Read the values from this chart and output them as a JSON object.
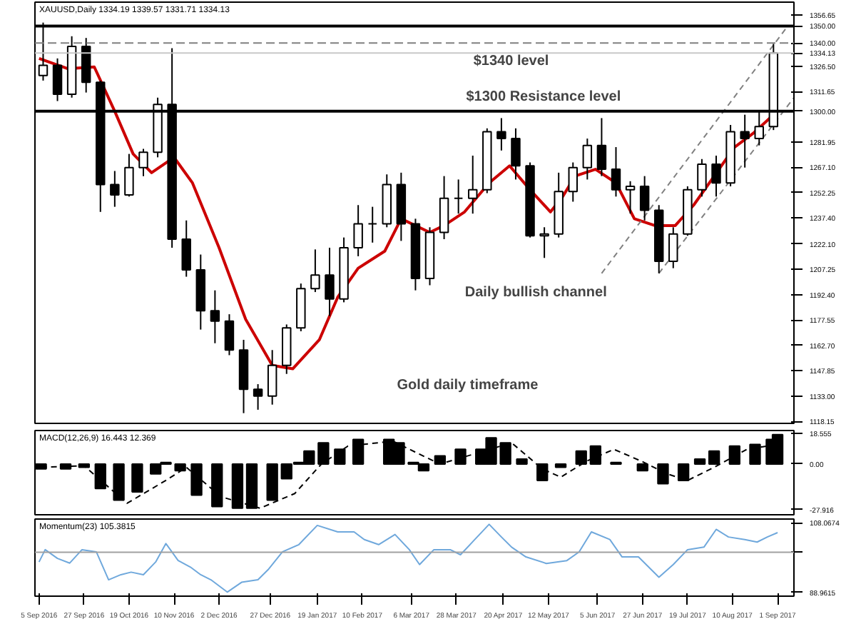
{
  "chart_data": [
    {
      "type": "candlestick",
      "title": "XAUUSD,Daily 1334.19 1339.57 1331.71 1334.13",
      "tick_labels": "y",
      "grid": false,
      "x": [
        "2016-09-07",
        "2016-09-14",
        "2016-09-21",
        "2016-09-28",
        "2016-10-05",
        "2016-10-12",
        "2016-10-19",
        "2016-10-26",
        "2016-11-02",
        "2016-11-09",
        "2016-11-16",
        "2016-11-23",
        "2016-11-30",
        "2016-12-07",
        "2016-12-14",
        "2016-12-21",
        "2016-12-28",
        "2017-01-04",
        "2017-01-11",
        "2017-01-18",
        "2017-01-25",
        "2017-02-01",
        "2017-02-08",
        "2017-02-15",
        "2017-02-22",
        "2017-03-01",
        "2017-03-08",
        "2017-03-15",
        "2017-03-22",
        "2017-03-29",
        "2017-04-05",
        "2017-04-12",
        "2017-04-19",
        "2017-04-26",
        "2017-05-03",
        "2017-05-10",
        "2017-05-17",
        "2017-05-24",
        "2017-05-31",
        "2017-06-07",
        "2017-06-14",
        "2017-06-21",
        "2017-06-28",
        "2017-07-05",
        "2017-07-12",
        "2017-07-19",
        "2017-07-26",
        "2017-08-02",
        "2017-08-09",
        "2017-08-16",
        "2017-08-23",
        "2017-08-30"
      ],
      "ohlc": [
        [
          1321,
          1352,
          1318,
          1327
        ],
        [
          1327,
          1331,
          1306,
          1310
        ],
        [
          1310,
          1344,
          1308,
          1338
        ],
        [
          1338,
          1343,
          1311,
          1317
        ],
        [
          1317,
          1318,
          1241,
          1257
        ],
        [
          1257,
          1265,
          1244,
          1251
        ],
        [
          1251,
          1275,
          1250,
          1267
        ],
        [
          1267,
          1278,
          1262,
          1276
        ],
        [
          1276,
          1308,
          1273,
          1304
        ],
        [
          1304,
          1337,
          1220,
          1225
        ],
        [
          1225,
          1236,
          1203,
          1207
        ],
        [
          1207,
          1216,
          1172,
          1183
        ],
        [
          1183,
          1195,
          1164,
          1177
        ],
        [
          1177,
          1181,
          1157,
          1160
        ],
        [
          1160,
          1166,
          1123,
          1137
        ],
        [
          1137,
          1140,
          1125,
          1133
        ],
        [
          1133,
          1160,
          1128,
          1151
        ],
        [
          1151,
          1175,
          1146,
          1173
        ],
        [
          1173,
          1199,
          1171,
          1196
        ],
        [
          1196,
          1219,
          1194,
          1204
        ],
        [
          1204,
          1220,
          1180,
          1190
        ],
        [
          1190,
          1226,
          1188,
          1220
        ],
        [
          1220,
          1245,
          1215,
          1234
        ],
        [
          1234,
          1244,
          1223,
          1234
        ],
        [
          1234,
          1263,
          1232,
          1257
        ],
        [
          1257,
          1264,
          1224,
          1234
        ],
        [
          1234,
          1237,
          1195,
          1202
        ],
        [
          1202,
          1232,
          1198,
          1229
        ],
        [
          1229,
          1262,
          1225,
          1249
        ],
        [
          1249,
          1260,
          1240,
          1249
        ],
        [
          1249,
          1274,
          1240,
          1254
        ],
        [
          1254,
          1290,
          1252,
          1288
        ],
        [
          1288,
          1296,
          1277,
          1284
        ],
        [
          1284,
          1290,
          1260,
          1268
        ],
        [
          1268,
          1270,
          1226,
          1227
        ],
        [
          1227,
          1232,
          1214,
          1228
        ],
        [
          1228,
          1264,
          1226,
          1253
        ],
        [
          1253,
          1270,
          1247,
          1267
        ],
        [
          1267,
          1284,
          1260,
          1280
        ],
        [
          1280,
          1296,
          1262,
          1266
        ],
        [
          1266,
          1279,
          1250,
          1254
        ],
        [
          1254,
          1259,
          1240,
          1256
        ],
        [
          1256,
          1262,
          1236,
          1242
        ],
        [
          1242,
          1245,
          1205,
          1212
        ],
        [
          1212,
          1232,
          1208,
          1228
        ],
        [
          1228,
          1256,
          1227,
          1254
        ],
        [
          1254,
          1272,
          1250,
          1269
        ],
        [
          1269,
          1274,
          1250,
          1258
        ],
        [
          1258,
          1292,
          1256,
          1288
        ],
        [
          1288,
          1298,
          1267,
          1284
        ],
        [
          1284,
          1300,
          1280,
          1291
        ],
        [
          1291,
          1339.57,
          1289,
          1334.13
        ]
      ],
      "series": [
        {
          "type": "line",
          "color": "#cc0000",
          "x": [
            "2016-09-05",
            "2016-09-19",
            "2016-10-02",
            "2016-10-12",
            "2016-10-21",
            "2016-10-30",
            "2016-11-10",
            "2016-11-19",
            "2016-12-02",
            "2016-12-15",
            "2016-12-28",
            "2017-01-07",
            "2017-01-20",
            "2017-01-29",
            "2017-02-08",
            "2017-02-21",
            "2017-03-01",
            "2017-03-15",
            "2017-03-22",
            "2017-04-01",
            "2017-04-13",
            "2017-04-23",
            "2017-05-03",
            "2017-05-13",
            "2017-05-19",
            "2017-05-25",
            "2017-06-04",
            "2017-06-14",
            "2017-06-23",
            "2017-07-03",
            "2017-07-13",
            "2017-07-22",
            "2017-08-01",
            "2017-08-11",
            "2017-08-20",
            "2017-08-30"
          ],
          "values": [
            1331,
            1325,
            1326,
            1300,
            1275,
            1264,
            1273,
            1258,
            1220,
            1178,
            1151,
            1149,
            1166,
            1191,
            1208,
            1218,
            1237,
            1229,
            1233,
            1241,
            1258,
            1268,
            1254,
            1241,
            1250,
            1262,
            1266,
            1258,
            1237,
            1233,
            1233,
            1245,
            1262,
            1279,
            1287,
            1298
          ]
        },
        {
          "type": "line",
          "color": "#808080",
          "line_style": "dashed",
          "x": [
            "2017-06-07",
            "2017-09-06"
          ],
          "values": [
            1205,
            1350
          ]
        },
        {
          "type": "line",
          "color": "#808080",
          "line_style": "dashed",
          "x": [
            "2017-07-05",
            "2017-09-09"
          ],
          "values": [
            1205,
            1308
          ]
        }
      ],
      "ref_lines": [
        {
          "axis": "y",
          "value": 1350,
          "label": "1350.00",
          "color": "#000000"
        },
        {
          "axis": "y",
          "value": 1340,
          "label": "1340.00",
          "color": "#808080",
          "line_style": "dashed"
        },
        {
          "axis": "y",
          "value": 1334.13,
          "label": "1334.13",
          "color": "#c8c8c8"
        },
        {
          "axis": "y",
          "value": 1300,
          "label": "1300.00",
          "color": "#000000"
        }
      ],
      "annotations": [
        "$1340  level",
        "$1300 Resistance level",
        "Daily bullish channel",
        "Gold daily timeframe"
      ],
      "xlim": [
        "2016-09-03",
        "2017-09-09"
      ],
      "ylim": [
        1117,
        1364
      ],
      "yticks": [
        1118.15,
        {
          "value": 1133,
          "label": "1133.00"
        },
        1147.85,
        {
          "value": 1162.7,
          "label": "1162.70"
        },
        1177.55,
        {
          "value": 1192.4,
          "label": "1192.40"
        },
        1207.25,
        {
          "value": 1222.1,
          "label": "1222.10"
        },
        {
          "value": 1237.4,
          "label": "1237.40"
        },
        1252.25,
        {
          "value": 1267.1,
          "label": "1267.10"
        },
        1281.95,
        1311.65,
        {
          "value": 1326.5,
          "label": "1326.50"
        },
        1356.65
      ]
    },
    {
      "type": "bar",
      "title": "MACD(12,26,9) 16.443 12.369",
      "tick_labels": "y",
      "grid": false,
      "series": [
        {
          "type": "bar",
          "color": "#000000",
          "x": [
            "2016-09-06",
            "2016-09-18",
            "2016-09-27",
            "2016-10-05",
            "2016-10-14",
            "2016-10-23",
            "2016-11-01",
            "2016-11-06",
            "2016-11-13",
            "2016-11-21",
            "2016-12-01",
            "2016-12-11",
            "2016-12-18",
            "2016-12-28",
            "2017-01-04",
            "2017-01-10",
            "2017-01-15",
            "2017-01-22",
            "2017-01-30",
            "2017-02-08",
            "2017-02-23",
            "2017-02-28",
            "2017-03-07",
            "2017-03-12",
            "2017-03-20",
            "2017-03-30",
            "2017-04-09",
            "2017-04-14",
            "2017-04-21",
            "2017-04-29",
            "2017-05-09",
            "2017-05-18",
            "2017-05-28",
            "2017-06-04",
            "2017-06-14",
            "2017-06-27",
            "2017-07-07",
            "2017-07-17",
            "2017-07-25",
            "2017-08-01",
            "2017-08-11",
            "2017-08-21",
            "2017-08-29",
            "2017-09-01"
          ],
          "values": [
            -3,
            -3,
            -2,
            -15,
            -22,
            -17,
            -6,
            1,
            -4,
            -19,
            -26,
            -27,
            -27,
            -22,
            -9,
            1,
            8,
            13,
            9,
            15,
            15,
            13,
            1,
            -4,
            5,
            9,
            9,
            16,
            13,
            3,
            -10,
            -2,
            8,
            11,
            1,
            -4,
            -12,
            -10,
            3,
            8,
            11,
            12,
            15,
            18
          ]
        },
        {
          "type": "line",
          "color": "#000000",
          "line_style": "dashed",
          "x": [
            "2016-09-06",
            "2016-09-27",
            "2016-10-18",
            "2016-11-06",
            "2016-11-16",
            "2016-12-03",
            "2016-12-22",
            "2017-01-08",
            "2017-01-21",
            "2017-02-03",
            "2017-02-25",
            "2017-03-10",
            "2017-03-20",
            "2017-04-08",
            "2017-04-24",
            "2017-05-09",
            "2017-05-18",
            "2017-05-31",
            "2017-06-13",
            "2017-06-26",
            "2017-07-09",
            "2017-07-19",
            "2017-08-01",
            "2017-08-17",
            "2017-09-01"
          ],
          "values": [
            -2,
            -1,
            -24,
            -10,
            -2,
            -20,
            -27,
            -18,
            0,
            11,
            14,
            6,
            0,
            7,
            13,
            -3,
            -8,
            2,
            9,
            2,
            -6,
            -10,
            -2,
            9,
            12
          ]
        }
      ],
      "xlim": [
        "2016-09-03",
        "2017-09-09"
      ],
      "ylim": [
        -31,
        20.5
      ],
      "yticks": [
        18.555,
        {
          "value": 0,
          "label": "0.00"
        },
        -27.916
      ]
    },
    {
      "type": "line",
      "title": "Momentum(23) 105.3815",
      "grid": false,
      "series": [
        {
          "type": "line",
          "color": "#6fa8dc",
          "x": [
            "2016-09-05",
            "2016-09-08",
            "2016-09-14",
            "2016-09-20",
            "2016-09-26",
            "2016-10-03",
            "2016-10-09",
            "2016-10-15",
            "2016-10-20",
            "2016-10-26",
            "2016-11-01",
            "2016-11-06",
            "2016-11-12",
            "2016-11-18",
            "2016-11-23",
            "2016-11-28",
            "2016-12-06",
            "2016-12-13",
            "2016-12-21",
            "2016-12-26",
            "2017-01-02",
            "2017-01-10",
            "2017-01-19",
            "2017-01-29",
            "2017-02-06",
            "2017-02-11",
            "2017-02-18",
            "2017-02-26",
            "2017-03-05",
            "2017-03-10",
            "2017-03-17",
            "2017-03-25",
            "2017-03-30",
            "2017-04-06",
            "2017-04-13",
            "2017-04-19",
            "2017-04-24",
            "2017-05-01",
            "2017-05-11",
            "2017-05-21",
            "2017-05-27",
            "2017-06-02",
            "2017-06-11",
            "2017-06-17",
            "2017-06-25",
            "2017-07-05",
            "2017-07-12",
            "2017-07-19",
            "2017-07-27",
            "2017-08-02",
            "2017-08-08",
            "2017-08-16",
            "2017-08-22",
            "2017-08-27",
            "2017-09-01"
          ],
          "values": [
            97.3,
            100.7,
            98.3,
            97.0,
            100.7,
            100.1,
            92.4,
            93.8,
            94.5,
            93.8,
            97.3,
            102.4,
            97.7,
            95.9,
            93.8,
            92.4,
            89.0,
            91.7,
            92.4,
            95.2,
            100.1,
            102.1,
            107.4,
            105.6,
            105.6,
            103.5,
            102.1,
            104.9,
            100.7,
            96.6,
            100.7,
            100.7,
            99.3,
            103.5,
            107.7,
            104.2,
            101.4,
            98.7,
            96.9,
            97.7,
            100.1,
            105.6,
            103.5,
            98.7,
            98.7,
            93.1,
            96.6,
            100.7,
            101.4,
            106.3,
            104.2,
            103.5,
            102.8,
            104.2,
            105.4
          ]
        }
      ],
      "ref_lines": [
        {
          "axis": "y",
          "value": 100,
          "color": "#a0a0a0"
        }
      ],
      "xlim": [
        "2016-09-03",
        "2017-09-09"
      ],
      "ylim": [
        87.88,
        109.15
      ],
      "yticks": [
        108.0674,
        {
          "value": 100,
          "label": null
        },
        88.9615
      ],
      "xticks": [
        {
          "value": "2016-09-05",
          "label": "5 Sep 2016"
        },
        {
          "value": "2016-09-27",
          "label": "27 Sep 2016"
        },
        {
          "value": "2016-10-19",
          "label": "19 Oct 2016"
        },
        {
          "value": "2016-11-10",
          "label": "10 Nov 2016"
        },
        {
          "value": "2016-12-02",
          "label": "2 Dec 2016"
        },
        {
          "value": "2016-12-27",
          "label": "27 Dec 2016"
        },
        {
          "value": "2017-01-19",
          "label": "19 Jan 2017"
        },
        {
          "value": "2017-02-10",
          "label": "10 Feb 2017"
        },
        {
          "value": "2017-03-06",
          "label": "6 Mar 2017"
        },
        {
          "value": "2017-03-28",
          "label": "28 Mar 2017"
        },
        {
          "value": "2017-04-20",
          "label": "20 Apr 2017"
        },
        {
          "value": "2017-05-12",
          "label": "12 May 2017"
        },
        {
          "value": "2017-06-05",
          "label": "5 Jun 2017"
        },
        {
          "value": "2017-06-27",
          "label": "27 Jun 2017"
        },
        {
          "value": "2017-07-19",
          "label": "19 Jul 2017"
        },
        {
          "value": "2017-08-10",
          "label": "10 Aug 2017"
        },
        {
          "value": "2017-09-01",
          "label": "1 Sep 2017"
        }
      ]
    }
  ]
}
